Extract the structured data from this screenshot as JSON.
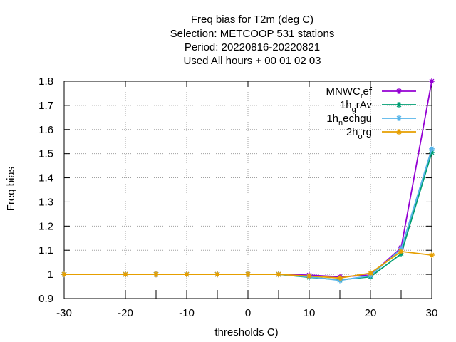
{
  "chart_data": {
    "type": "line",
    "title_lines": [
      "Freq bias  for T2m (deg C)",
      "Selection: METCOOP    531 stations",
      "Period: 20220816-20220821",
      "Used  All hours  + 00 01 02 03"
    ],
    "xlabel": "thresholds C)",
    "ylabel": "Freq bias",
    "xlim": [
      -30,
      30
    ],
    "ylim": [
      0.9,
      1.8
    ],
    "xticks": [
      -30,
      -20,
      -10,
      0,
      10,
      20,
      30
    ],
    "yticks": [
      0.9,
      1,
      1.1,
      1.2,
      1.3,
      1.4,
      1.5,
      1.6,
      1.7,
      1.8
    ],
    "ytick_labels": [
      "0.9",
      "1",
      "1.1",
      "1.2",
      "1.3",
      "1.4",
      "1.5",
      "1.6",
      "1.7",
      "1.8"
    ],
    "grid": true,
    "legend_position": "top-right",
    "x": [
      -30,
      -20,
      -15,
      -10,
      -5,
      0,
      5,
      10,
      15,
      20,
      25,
      30
    ],
    "series": [
      {
        "legend_main": "MNWC",
        "legend_sub": "r",
        "legend_tail": "ef",
        "color": "#9400d3",
        "values": [
          1,
          1,
          1,
          1,
          1,
          1,
          1,
          0.997,
          0.99,
          0.997,
          1.11,
          1.8
        ]
      },
      {
        "legend_main": "1h",
        "legend_sub": "g",
        "legend_tail": "rAv",
        "color": "#009e73",
        "values": [
          1,
          1,
          1,
          1,
          1,
          1,
          1,
          0.988,
          0.977,
          0.99,
          1.085,
          1.505
        ]
      },
      {
        "legend_main": "1h",
        "legend_sub": "n",
        "legend_tail": "echgu",
        "color": "#56b4e9",
        "values": [
          1,
          1,
          1,
          1,
          1,
          1,
          1,
          0.99,
          0.975,
          0.995,
          1.105,
          1.52
        ]
      },
      {
        "legend_main": "2h",
        "legend_sub": "o",
        "legend_tail": "rg",
        "color": "#e69f00",
        "values": [
          1,
          1,
          1,
          1,
          1,
          1,
          1,
          0.993,
          0.985,
          1.005,
          1.095,
          1.08
        ]
      }
    ]
  }
}
